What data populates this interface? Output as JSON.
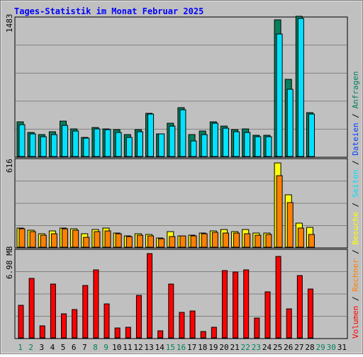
{
  "title": "Tages-Statistik im Monat Februar 2025",
  "colors": {
    "background": "#C0C0C0",
    "frame_dark": "#808080",
    "plot_bg": "#C0C0C0",
    "hits": "#00805C",
    "files": "#0040FF",
    "pages": "#00E0FF",
    "visits": "#FFFF00",
    "sites": "#FF8000",
    "kbytes": "#FF0000",
    "title": "#0000FF",
    "weekend_day": "#00805C",
    "weekday": "#000000"
  },
  "legend": {
    "hits": "Anfragen",
    "files": "Dateien",
    "pages": "Seiten",
    "visits": "Besuche",
    "sites": "Rechner",
    "kbytes": "Volumen",
    "sep1": " / ",
    "sep2": " / ",
    "sep3": " / ",
    "sep4": " / ",
    "sep5": " / "
  },
  "chart_data": [
    {
      "type": "bar",
      "title": "Tages-Statistik im Monat Februar 2025",
      "ymax_label": "1483",
      "ylim": [
        0,
        1483
      ],
      "categories": [
        "1",
        "2",
        "3",
        "4",
        "5",
        "6",
        "7",
        "8",
        "9",
        "10",
        "11",
        "12",
        "13",
        "14",
        "15",
        "16",
        "17",
        "18",
        "19",
        "20",
        "21",
        "22",
        "23",
        "24",
        "25",
        "26",
        "27",
        "28",
        "29",
        "30",
        "31"
      ],
      "series": [
        {
          "name": "Anfragen",
          "values": [
            380,
            260,
            240,
            270,
            390,
            300,
            210,
            320,
            300,
            290,
            240,
            290,
            470,
            250,
            360,
            530,
            240,
            280,
            380,
            330,
            290,
            300,
            230,
            230,
            1490,
            840,
            1530,
            480,
            0,
            0,
            0
          ]
        },
        {
          "name": "Seiten",
          "values": [
            350,
            250,
            220,
            240,
            340,
            280,
            200,
            300,
            290,
            260,
            210,
            270,
            460,
            250,
            330,
            510,
            170,
            240,
            360,
            310,
            270,
            260,
            220,
            220,
            1340,
            730,
            1510,
            460,
            0,
            0,
            0
          ]
        }
      ]
    },
    {
      "type": "bar",
      "ymax_label": "616",
      "ylim": [
        0,
        616
      ],
      "categories": [
        "1",
        "2",
        "3",
        "4",
        "5",
        "6",
        "7",
        "8",
        "9",
        "10",
        "11",
        "12",
        "13",
        "14",
        "15",
        "16",
        "17",
        "18",
        "19",
        "20",
        "21",
        "22",
        "23",
        "24",
        "25",
        "26",
        "27",
        "28",
        "29",
        "30",
        "31"
      ],
      "series": [
        {
          "name": "Besuche",
          "values": [
            140,
            125,
            95,
            120,
            140,
            135,
            95,
            130,
            140,
            105,
            80,
            95,
            90,
            65,
            115,
            80,
            85,
            105,
            120,
            130,
            115,
            130,
            105,
            105,
            611,
            380,
            175,
            145,
            0,
            0,
            0
          ]
        },
        {
          "name": "Rechner",
          "values": [
            135,
            115,
            85,
            100,
            135,
            125,
            70,
            115,
            120,
            95,
            75,
            85,
            80,
            60,
            75,
            80,
            80,
            95,
            110,
            105,
            105,
            95,
            85,
            90,
            520,
            325,
            140,
            90,
            0,
            0,
            0
          ]
        }
      ]
    },
    {
      "type": "bar",
      "ymax_label": "6.98 MB",
      "ylim": [
        0,
        6.98
      ],
      "categories": [
        "1",
        "2",
        "3",
        "4",
        "5",
        "6",
        "7",
        "8",
        "9",
        "10",
        "11",
        "12",
        "13",
        "14",
        "15",
        "16",
        "17",
        "18",
        "19",
        "20",
        "21",
        "22",
        "23",
        "24",
        "25",
        "26",
        "27",
        "28",
        "29",
        "30",
        "31"
      ],
      "series": [
        {
          "name": "Volumen",
          "values": [
            2.7,
            4.9,
            1.0,
            4.4,
            2.0,
            2.3,
            4.3,
            5.6,
            2.8,
            0.8,
            0.9,
            3.5,
            6.9,
            0.6,
            4.4,
            2.1,
            2.2,
            0.5,
            0.9,
            5.5,
            5.4,
            5.6,
            1.6,
            3.8,
            6.7,
            2.4,
            5.1,
            4.0,
            0,
            0,
            0
          ]
        }
      ]
    }
  ],
  "x_days": [
    {
      "label": "1",
      "weekend": true
    },
    {
      "label": "2",
      "weekend": true
    },
    {
      "label": "3",
      "weekend": false
    },
    {
      "label": "4",
      "weekend": false
    },
    {
      "label": "5",
      "weekend": false
    },
    {
      "label": "6",
      "weekend": false
    },
    {
      "label": "7",
      "weekend": false
    },
    {
      "label": "8",
      "weekend": true
    },
    {
      "label": "9",
      "weekend": true
    },
    {
      "label": "10",
      "weekend": false
    },
    {
      "label": "11",
      "weekend": false
    },
    {
      "label": "12",
      "weekend": false
    },
    {
      "label": "13",
      "weekend": false
    },
    {
      "label": "14",
      "weekend": false
    },
    {
      "label": "15",
      "weekend": true
    },
    {
      "label": "16",
      "weekend": true
    },
    {
      "label": "17",
      "weekend": false
    },
    {
      "label": "18",
      "weekend": false
    },
    {
      "label": "19",
      "weekend": false
    },
    {
      "label": "20",
      "weekend": false
    },
    {
      "label": "21",
      "weekend": false
    },
    {
      "label": "22",
      "weekend": true
    },
    {
      "label": "23",
      "weekend": true
    },
    {
      "label": "24",
      "weekend": false
    },
    {
      "label": "25",
      "weekend": false
    },
    {
      "label": "26",
      "weekend": false
    },
    {
      "label": "27",
      "weekend": false
    },
    {
      "label": "28",
      "weekend": false
    },
    {
      "label": "29",
      "weekend": true
    },
    {
      "label": "30",
      "weekend": true
    },
    {
      "label": "31",
      "weekend": false
    }
  ]
}
